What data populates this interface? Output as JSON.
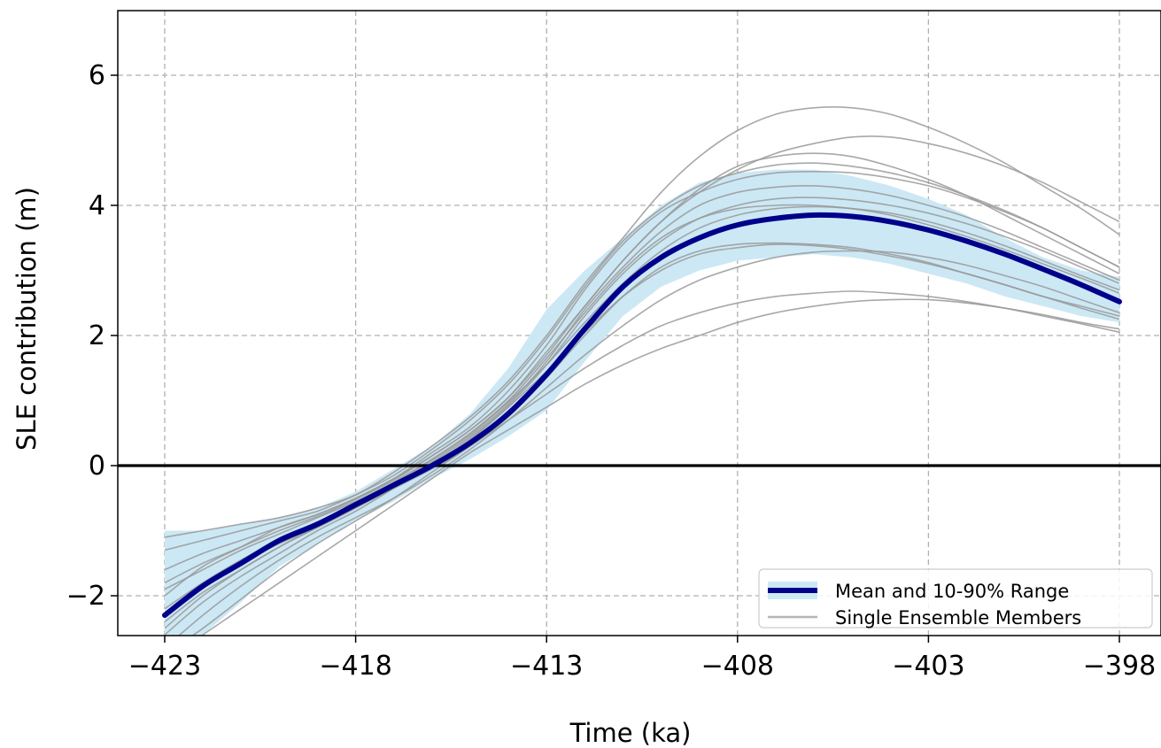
{
  "chart_data": {
    "type": "line",
    "xlabel": "Time (ka)",
    "ylabel": "SLE contribution (m)",
    "xlim": [
      -423,
      -398
    ],
    "ylim": [
      -3,
      7
    ],
    "xticks": [
      -423,
      -418,
      -413,
      -408,
      -403,
      -398
    ],
    "xtick_labels": [
      "−423",
      "−418",
      "−413",
      "−408",
      "−403",
      "−398"
    ],
    "yticks": [
      -2,
      0,
      2,
      4,
      6
    ],
    "ytick_labels": [
      "−2",
      "0",
      "2",
      "4",
      "6"
    ],
    "grid": true,
    "zero_line": 0,
    "legend_position": "lower-right",
    "legend": {
      "mean_label": "Mean and 10-90% Range",
      "members_label": "Single Ensemble Members"
    },
    "colors": {
      "mean": "#00008b",
      "band": "#cce8f5",
      "members": "#999999",
      "grid": "#b0b0b0"
    },
    "x": [
      -423,
      -422,
      -421,
      -420,
      -419,
      -418,
      -417,
      -416,
      -415,
      -414,
      -413,
      -412,
      -411,
      -410,
      -409,
      -408,
      -407,
      -406,
      -405,
      -404,
      -403,
      -402,
      -401,
      -400,
      -399,
      -398
    ],
    "mean": [
      -2.3,
      -1.85,
      -1.5,
      -1.15,
      -0.9,
      -0.6,
      -0.3,
      0.0,
      0.35,
      0.8,
      1.4,
      2.1,
      2.75,
      3.2,
      3.5,
      3.7,
      3.8,
      3.85,
      3.83,
      3.75,
      3.62,
      3.45,
      3.25,
      3.02,
      2.78,
      2.52
    ],
    "p10": [
      -3.0,
      -2.6,
      -2.1,
      -1.55,
      -1.2,
      -0.85,
      -0.55,
      -0.2,
      0.1,
      0.45,
      0.85,
      1.6,
      2.3,
      2.75,
      3.0,
      3.15,
      3.2,
      3.25,
      3.2,
      3.1,
      2.95,
      2.8,
      2.6,
      2.45,
      2.3,
      2.2
    ],
    "p90": [
      -1.0,
      -1.0,
      -0.9,
      -0.8,
      -0.65,
      -0.4,
      -0.05,
      0.3,
      0.8,
      1.5,
      2.4,
      3.0,
      3.5,
      4.0,
      4.35,
      4.5,
      4.55,
      4.55,
      4.45,
      4.3,
      4.1,
      3.85,
      3.5,
      3.2,
      3.0,
      2.9
    ],
    "members": [
      [
        -2.0,
        -1.55,
        -1.25,
        -0.95,
        -0.75,
        -0.5,
        -0.2,
        0.15,
        0.55,
        1.05,
        1.75,
        2.45,
        3.15,
        3.75,
        4.25,
        4.6,
        4.75,
        4.8,
        4.75,
        4.6,
        4.4,
        4.15,
        3.85,
        3.55,
        3.25,
        2.95
      ],
      [
        -2.4,
        -1.95,
        -1.6,
        -1.25,
        -0.95,
        -0.65,
        -0.3,
        0.05,
        0.45,
        0.95,
        1.6,
        2.4,
        3.05,
        3.6,
        4.0,
        4.2,
        4.28,
        4.3,
        4.25,
        4.15,
        4.0,
        3.82,
        3.6,
        3.35,
        3.1,
        2.85
      ],
      [
        -2.3,
        -1.85,
        -1.5,
        -1.2,
        -0.95,
        -0.65,
        -0.35,
        -0.05,
        0.3,
        0.75,
        1.35,
        2.0,
        2.6,
        3.05,
        3.3,
        3.4,
        3.42,
        3.4,
        3.35,
        3.25,
        3.12,
        2.95,
        2.78,
        2.6,
        2.45,
        2.3
      ],
      [
        -3.0,
        -2.6,
        -2.2,
        -1.8,
        -1.4,
        -1.0,
        -0.6,
        -0.2,
        0.2,
        0.55,
        0.9,
        1.25,
        1.55,
        1.8,
        2.0,
        2.2,
        2.35,
        2.45,
        2.52,
        2.55,
        2.55,
        2.5,
        2.42,
        2.32,
        2.2,
        2.1
      ],
      [
        -1.1,
        -1.0,
        -0.9,
        -0.8,
        -0.65,
        -0.45,
        -0.1,
        0.3,
        0.75,
        1.3,
        2.0,
        2.8,
        3.5,
        4.2,
        4.75,
        5.15,
        5.4,
        5.5,
        5.5,
        5.4,
        5.2,
        4.95,
        4.65,
        4.3,
        3.95,
        3.55
      ],
      [
        -2.8,
        -2.3,
        -1.85,
        -1.45,
        -1.1,
        -0.8,
        -0.5,
        -0.15,
        0.25,
        0.7,
        1.2,
        1.7,
        2.15,
        2.55,
        2.85,
        3.05,
        3.2,
        3.28,
        3.3,
        3.28,
        3.2,
        3.08,
        2.92,
        2.75,
        2.55,
        2.35
      ],
      [
        -1.6,
        -1.35,
        -1.15,
        -0.95,
        -0.75,
        -0.5,
        -0.2,
        0.2,
        0.6,
        1.15,
        1.85,
        2.7,
        3.4,
        3.9,
        4.2,
        4.4,
        4.5,
        4.52,
        4.5,
        4.42,
        4.3,
        4.12,
        3.9,
        3.65,
        3.35,
        3.05
      ],
      [
        -2.9,
        -2.5,
        -2.05,
        -1.6,
        -1.2,
        -0.85,
        -0.5,
        -0.1,
        0.3,
        0.7,
        1.1,
        1.5,
        1.85,
        2.15,
        2.35,
        2.5,
        2.6,
        2.65,
        2.68,
        2.65,
        2.6,
        2.52,
        2.42,
        2.3,
        2.18,
        2.05
      ],
      [
        -1.9,
        -1.6,
        -1.3,
        -1.05,
        -0.8,
        -0.55,
        -0.25,
        0.1,
        0.5,
        1.0,
        1.65,
        2.35,
        3.0,
        3.5,
        3.8,
        3.95,
        4.0,
        4.0,
        3.95,
        3.85,
        3.7,
        3.52,
        3.32,
        3.1,
        2.88,
        2.65
      ],
      [
        -2.6,
        -2.1,
        -1.7,
        -1.35,
        -1.0,
        -0.7,
        -0.35,
        0.0,
        0.4,
        0.9,
        1.45,
        2.05,
        2.6,
        3.0,
        3.25,
        3.35,
        3.4,
        3.38,
        3.32,
        3.22,
        3.1,
        2.95,
        2.78,
        2.6,
        2.42,
        2.25
      ],
      [
        -1.3,
        -1.15,
        -1.0,
        -0.85,
        -0.7,
        -0.45,
        -0.15,
        0.25,
        0.7,
        1.25,
        1.95,
        2.75,
        3.45,
        3.95,
        4.3,
        4.5,
        4.62,
        4.65,
        4.6,
        4.5,
        4.35,
        4.15,
        3.92,
        3.65,
        3.35,
        3.05
      ],
      [
        -2.2,
        -1.8,
        -1.45,
        -1.15,
        -0.9,
        -0.6,
        -0.28,
        0.08,
        0.48,
        0.98,
        1.55,
        2.2,
        2.8,
        3.3,
        3.65,
        3.85,
        3.95,
        3.98,
        3.95,
        3.88,
        3.75,
        3.58,
        3.38,
        3.15,
        2.92,
        2.7
      ],
      [
        -2.5,
        -2.0,
        -1.6,
        -1.25,
        -0.95,
        -0.65,
        -0.32,
        0.02,
        0.42,
        0.92,
        1.55,
        2.3,
        2.95,
        3.45,
        3.8,
        4.0,
        4.1,
        4.12,
        4.08,
        4.0,
        3.88,
        3.72,
        3.52,
        3.3,
        3.05,
        2.8
      ],
      [
        -1.8,
        -1.5,
        -1.25,
        -1.0,
        -0.78,
        -0.52,
        -0.22,
        0.15,
        0.55,
        1.05,
        1.7,
        2.45,
        3.15,
        3.75,
        4.2,
        4.55,
        4.8,
        4.95,
        5.05,
        5.05,
        4.95,
        4.8,
        4.6,
        4.35,
        4.05,
        3.75
      ]
    ]
  }
}
